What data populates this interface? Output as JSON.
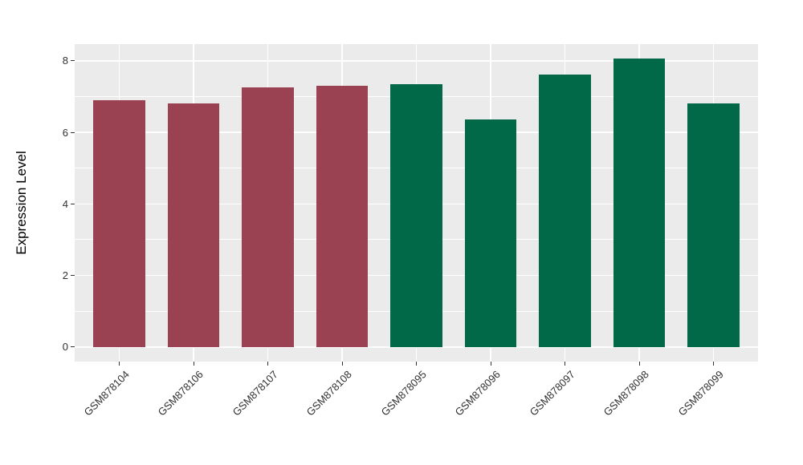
{
  "figure": {
    "background_color": "#FFFFFF",
    "panel_background_color": "#EBEBEB",
    "gridline_color": "#FFFFFF",
    "axis_text_color": "#303030",
    "axis_title_color": "#000000"
  },
  "chart_data": {
    "type": "bar",
    "title": "",
    "xlabel": "",
    "ylabel": "Expression Level",
    "categories": [
      "GSM878104",
      "GSM878106",
      "GSM878107",
      "GSM878108",
      "GSM878095",
      "GSM878096",
      "GSM878097",
      "GSM878098",
      "GSM878099"
    ],
    "values": [
      6.9,
      6.81,
      7.26,
      7.3,
      7.35,
      6.37,
      7.62,
      8.06,
      6.81
    ],
    "bar_colors": [
      "#9A4152",
      "#9A4152",
      "#9A4152",
      "#9A4152",
      "#016948",
      "#016948",
      "#016948",
      "#016948",
      "#016948"
    ],
    "yticks": [
      0,
      2,
      4,
      6,
      8
    ],
    "ylim": [
      -0.41,
      8.47
    ],
    "grid": {
      "horizontal_major": true,
      "horizontal_minor": true,
      "vertical_major": true,
      "legend": "none"
    },
    "x_tick_rotation_deg": 45
  }
}
